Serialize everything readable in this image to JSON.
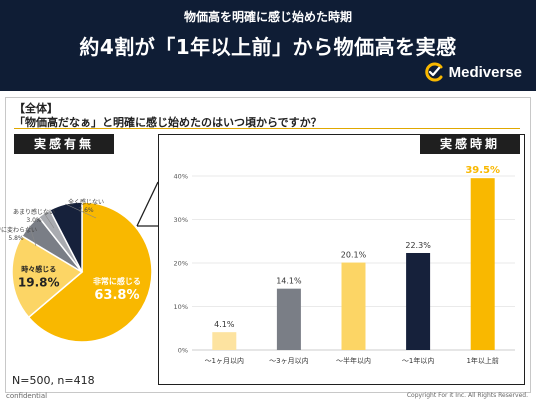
{
  "header": {
    "subtitle": "物価高を明確に感じ始めた時期",
    "title": "約4割が「1年以上前」から物価高を実感",
    "brand": "Mediverse"
  },
  "section_tag": "【全体】",
  "question": "「物価高だなぁ」と明確に感じ始めたのはいつ頃からですか？",
  "left_header": "実感有無",
  "right_header": "実感時期",
  "sample_size": "N=500, n=418",
  "footer": {
    "confidential": "confidential",
    "copyright": "Copyright For it Inc. All Rights Reserved."
  },
  "colors": {
    "navy": "#0f1d35",
    "gold": "#f9b800",
    "light_gold": "#fcd565",
    "pale_gold": "#fde3a0",
    "gray": "#7a7e86",
    "dark_navy": "#16213b"
  },
  "chart_data": [
    {
      "type": "pie",
      "slices": [
        {
          "label": "非常に感じる",
          "value": 63.8,
          "display": "63.8%",
          "color": "#f9b800"
        },
        {
          "label": "時々感じる",
          "value": 19.8,
          "display": "19.8%",
          "color": "#fcd565"
        },
        {
          "label": "特に変わらない",
          "value": 5.8,
          "display": "5.8%",
          "color": "#7a7e86"
        },
        {
          "label": "あまり感じない",
          "value": 3.0,
          "display": "3.0%",
          "color": "#a9abb0"
        },
        {
          "label": "全く感じない",
          "value": 7.6,
          "display": "7.6%",
          "color": "#16213b"
        }
      ]
    },
    {
      "type": "bar",
      "categories": [
        "〜1ヶ月以内",
        "〜3ヶ月以内",
        "〜半年以内",
        "〜1年以内",
        "1年以上前"
      ],
      "values": [
        4.1,
        14.1,
        20.1,
        22.3,
        39.5
      ],
      "value_labels": [
        "4.1%",
        "14.1%",
        "20.1%",
        "22.3%",
        "39.5%"
      ],
      "colors": [
        "#fde3a0",
        "#7a7e86",
        "#fcd565",
        "#16213b",
        "#f9b800"
      ],
      "ylim": [
        0,
        40
      ],
      "yticks": [
        "0%",
        "10%",
        "20%",
        "30%",
        "40%"
      ],
      "grid": true
    }
  ]
}
